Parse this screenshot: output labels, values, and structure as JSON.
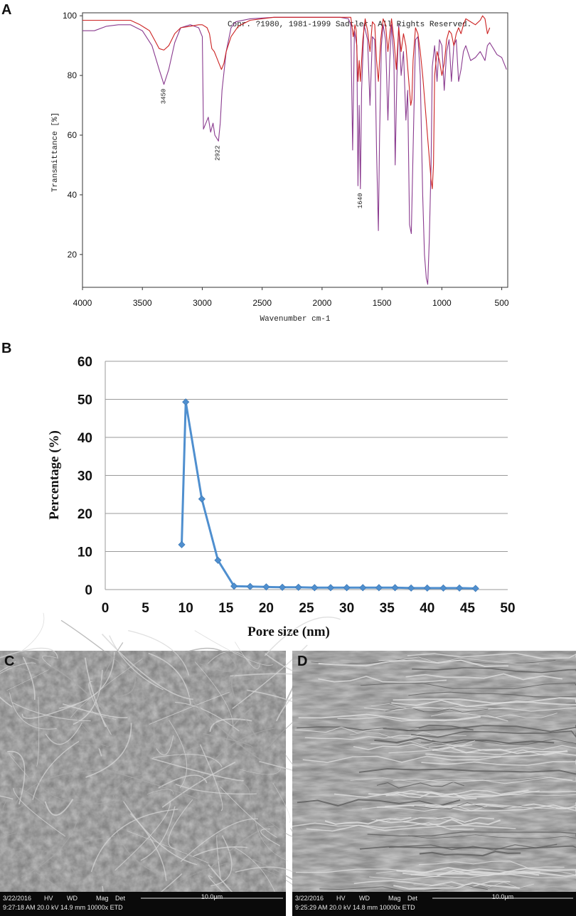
{
  "panels": {
    "a_label": "A",
    "b_label": "B",
    "c_label": "C",
    "d_label": "D"
  },
  "chart_data": [
    {
      "type": "line",
      "panel": "A",
      "annotation_top": "Copr. ?1980, 1981-1999 Sadtler.  All Rights Reserved.",
      "xlabel": "Wavenumber cm-1",
      "ylabel": "Transmittance [%]",
      "x_ticks": [
        "4000",
        "3500",
        "3000",
        "2500",
        "2000",
        "1500",
        "1000",
        "500"
      ],
      "y_ticks": [
        "100",
        "80",
        "60",
        "40",
        "20"
      ],
      "xlim": [
        4000,
        450
      ],
      "ylim": [
        9,
        101
      ],
      "x_reversed": true,
      "peak_labels": [
        {
          "label": "3450",
          "x": 3320,
          "y": 77
        },
        {
          "label": "2922",
          "x": 2870,
          "y": 58
        },
        {
          "label": "1640",
          "x": 1680,
          "y": 42
        }
      ],
      "series": [
        {
          "color": "#8a3b8f",
          "points": [
            [
              4000,
              95
            ],
            [
              3900,
              95
            ],
            [
              3800,
              96.5
            ],
            [
              3700,
              97
            ],
            [
              3600,
              97
            ],
            [
              3500,
              95
            ],
            [
              3420,
              90
            ],
            [
              3360,
              82
            ],
            [
              3320,
              77
            ],
            [
              3280,
              82
            ],
            [
              3230,
              91
            ],
            [
              3180,
              96
            ],
            [
              3100,
              97
            ],
            [
              3030,
              96
            ],
            [
              3000,
              93
            ],
            [
              2990,
              62
            ],
            [
              2970,
              64
            ],
            [
              2950,
              66
            ],
            [
              2930,
              61
            ],
            [
              2910,
              64
            ],
            [
              2895,
              60
            ],
            [
              2880,
              59
            ],
            [
              2865,
              58
            ],
            [
              2850,
              64
            ],
            [
              2835,
              75
            ],
            [
              2800,
              88
            ],
            [
              2760,
              96
            ],
            [
              2720,
              98
            ],
            [
              2600,
              99
            ],
            [
              2400,
              99.5
            ],
            [
              2200,
              99.5
            ],
            [
              2000,
              99.5
            ],
            [
              1850,
              99.5
            ],
            [
              1780,
              99
            ],
            [
              1760,
              97
            ],
            [
              1745,
              55
            ],
            [
              1730,
              95
            ],
            [
              1710,
              90
            ],
            [
              1700,
              43
            ],
            [
              1690,
              70
            ],
            [
              1680,
              42
            ],
            [
              1670,
              75
            ],
            [
              1650,
              97
            ],
            [
              1620,
              92
            ],
            [
              1600,
              70
            ],
            [
              1580,
              93
            ],
            [
              1560,
              92
            ],
            [
              1545,
              55
            ],
            [
              1530,
              28
            ],
            [
              1520,
              60
            ],
            [
              1505,
              90
            ],
            [
              1490,
              97
            ],
            [
              1470,
              92
            ],
            [
              1450,
              65
            ],
            [
              1435,
              85
            ],
            [
              1420,
              97
            ],
            [
              1400,
              85
            ],
            [
              1390,
              50
            ],
            [
              1375,
              80
            ],
            [
              1360,
              97
            ],
            [
              1340,
              80
            ],
            [
              1320,
              88
            ],
            [
              1300,
              65
            ],
            [
              1285,
              75
            ],
            [
              1270,
              30
            ],
            [
              1255,
              27
            ],
            [
              1240,
              55
            ],
            [
              1220,
              92
            ],
            [
              1200,
              93
            ],
            [
              1180,
              80
            ],
            [
              1160,
              40
            ],
            [
              1145,
              20
            ],
            [
              1130,
              12
            ],
            [
              1118,
              10
            ],
            [
              1105,
              25
            ],
            [
              1090,
              50
            ],
            [
              1080,
              83
            ],
            [
              1060,
              90
            ],
            [
              1040,
              78
            ],
            [
              1020,
              92
            ],
            [
              1000,
              90
            ],
            [
              980,
              75
            ],
            [
              960,
              88
            ],
            [
              940,
              92
            ],
            [
              920,
              78
            ],
            [
              900,
              90
            ],
            [
              880,
              92
            ],
            [
              860,
              78
            ],
            [
              840,
              82
            ],
            [
              820,
              88
            ],
            [
              800,
              90
            ],
            [
              760,
              85
            ],
            [
              720,
              86
            ],
            [
              680,
              88
            ],
            [
              640,
              85
            ],
            [
              620,
              90
            ],
            [
              600,
              91
            ],
            [
              570,
              89
            ],
            [
              540,
              87
            ],
            [
              500,
              86
            ],
            [
              460,
              82
            ]
          ]
        },
        {
          "color": "#cc2222",
          "points": [
            [
              4000,
              98.5
            ],
            [
              3850,
              98.5
            ],
            [
              3700,
              98.5
            ],
            [
              3600,
              98.5
            ],
            [
              3520,
              97
            ],
            [
              3480,
              96
            ],
            [
              3440,
              95
            ],
            [
              3400,
              92
            ],
            [
              3360,
              89
            ],
            [
              3320,
              88.5
            ],
            [
              3280,
              90
            ],
            [
              3230,
              94
            ],
            [
              3180,
              96
            ],
            [
              3100,
              96.5
            ],
            [
              3030,
              97
            ],
            [
              3000,
              97
            ],
            [
              2960,
              96
            ],
            [
              2940,
              94
            ],
            [
              2920,
              89
            ],
            [
              2900,
              88
            ],
            [
              2880,
              86
            ],
            [
              2860,
              84
            ],
            [
              2840,
              82
            ],
            [
              2820,
              84
            ],
            [
              2800,
              88
            ],
            [
              2760,
              93
            ],
            [
              2700,
              96.5
            ],
            [
              2600,
              98.5
            ],
            [
              2400,
              99.5
            ],
            [
              2200,
              99.5
            ],
            [
              2000,
              99.5
            ],
            [
              1850,
              99.5
            ],
            [
              1780,
              99.5
            ],
            [
              1760,
              99.5
            ],
            [
              1755,
              98
            ],
            [
              1740,
              93
            ],
            [
              1725,
              97
            ],
            [
              1715,
              95
            ],
            [
              1700,
              78
            ],
            [
              1690,
              85
            ],
            [
              1680,
              78
            ],
            [
              1660,
              92
            ],
            [
              1640,
              99
            ],
            [
              1620,
              95
            ],
            [
              1600,
              88
            ],
            [
              1590,
              93
            ],
            [
              1580,
              98
            ],
            [
              1560,
              97
            ],
            [
              1545,
              85
            ],
            [
              1530,
              78
            ],
            [
              1510,
              92
            ],
            [
              1490,
              99
            ],
            [
              1470,
              97
            ],
            [
              1450,
              88
            ],
            [
              1440,
              92
            ],
            [
              1420,
              99
            ],
            [
              1400,
              92
            ],
            [
              1380,
              82
            ],
            [
              1360,
              96
            ],
            [
              1340,
              88
            ],
            [
              1320,
              94
            ],
            [
              1300,
              90
            ],
            [
              1280,
              80
            ],
            [
              1260,
              70
            ],
            [
              1250,
              72
            ],
            [
              1240,
              85
            ],
            [
              1220,
              96
            ],
            [
              1200,
              94
            ],
            [
              1180,
              88
            ],
            [
              1160,
              80
            ],
            [
              1140,
              70
            ],
            [
              1120,
              60
            ],
            [
              1100,
              50
            ],
            [
              1090,
              45
            ],
            [
              1080,
              42
            ],
            [
              1070,
              50
            ],
            [
              1060,
              80
            ],
            [
              1040,
              88
            ],
            [
              1020,
              85
            ],
            [
              1000,
              80
            ],
            [
              980,
              84
            ],
            [
              960,
              92
            ],
            [
              940,
              95
            ],
            [
              920,
              94
            ],
            [
              900,
              90
            ],
            [
              880,
              94
            ],
            [
              860,
              96
            ],
            [
              840,
              94
            ],
            [
              820,
              97
            ],
            [
              800,
              99
            ],
            [
              760,
              98
            ],
            [
              720,
              97
            ],
            [
              680,
              98.5
            ],
            [
              660,
              100
            ],
            [
              640,
              99
            ],
            [
              620,
              94
            ],
            [
              600,
              96
            ]
          ]
        }
      ]
    },
    {
      "type": "line",
      "panel": "B",
      "xlabel": "Pore size (nm)",
      "ylabel": "Percentage (%)",
      "xlim": [
        0,
        50
      ],
      "ylim": [
        0,
        60
      ],
      "x_ticks": [
        "0",
        "5",
        "10",
        "15",
        "20",
        "25",
        "30",
        "35",
        "40",
        "45",
        "50"
      ],
      "y_ticks": [
        "0",
        "10",
        "20",
        "30",
        "40",
        "50",
        "60"
      ],
      "grid": true,
      "series": [
        {
          "color": "#4f8fcf",
          "marker": "diamond",
          "x": [
            9.5,
            10,
            12,
            14,
            16,
            18,
            20,
            22,
            24,
            26,
            28,
            30,
            32,
            34,
            36,
            38,
            40,
            42,
            44,
            46
          ],
          "y": [
            11.8,
            49.3,
            23.8,
            7.7,
            0.9,
            0.8,
            0.7,
            0.6,
            0.6,
            0.5,
            0.5,
            0.5,
            0.5,
            0.5,
            0.5,
            0.4,
            0.4,
            0.4,
            0.4,
            0.3
          ]
        }
      ]
    }
  ],
  "sem_c": {
    "headers": [
      "3/22/2016",
      "HV",
      "WD",
      "Mag",
      "Det"
    ],
    "values": "9:27:18 AM 20.0 kV 14.9 mm 10000x ETD",
    "scale": "10.0μm"
  },
  "sem_d": {
    "headers": [
      "3/22/2016",
      "HV",
      "WD",
      "Mag",
      "Det"
    ],
    "values": "9:25:29 AM 20.0 kV 14.8 mm 10000x ETD",
    "scale": "10.0μm"
  },
  "colors": {
    "purple": "#8a3b8f",
    "red": "#cc2222",
    "blue": "#4f8fcf",
    "grid": "#9a9a9a"
  }
}
